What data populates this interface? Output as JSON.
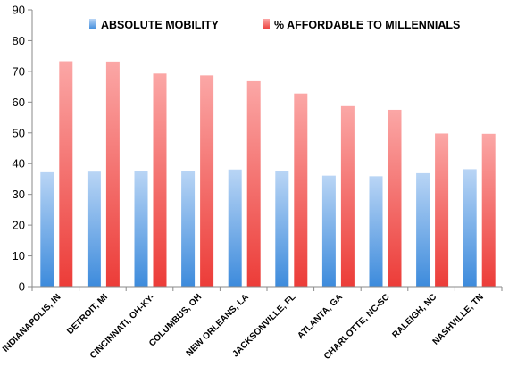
{
  "chart_data": {
    "type": "bar",
    "title": "",
    "xlabel": "",
    "ylabel": "",
    "ylim": [
      0,
      90
    ],
    "yticks": [
      0,
      10,
      20,
      30,
      40,
      50,
      60,
      70,
      80,
      90
    ],
    "grid": false,
    "legend_position": "top",
    "categories": [
      "Indianapolis, IN",
      "Detroit, MI",
      "Cincinnati, OH-KY-",
      "Columbus, OH",
      "New Orleans, LA",
      "Jacksonville, FL",
      "Atlanta, GA",
      "Charlotte, NC-SC",
      "Raleigh, NC",
      "Nashville, TN"
    ],
    "series": [
      {
        "name": "ABSOLUTE MOBILITY",
        "color": "#5b9bd5",
        "values": [
          37.2,
          37.4,
          37.7,
          37.6,
          38.1,
          37.5,
          36.1,
          35.9,
          36.9,
          38.2
        ]
      },
      {
        "name": "% AFFORDABLE TO MILLENNIALS",
        "color": "#ef5350",
        "values": [
          73.3,
          73.2,
          69.3,
          68.7,
          66.8,
          62.8,
          58.7,
          57.5,
          49.8,
          49.7
        ]
      }
    ]
  }
}
